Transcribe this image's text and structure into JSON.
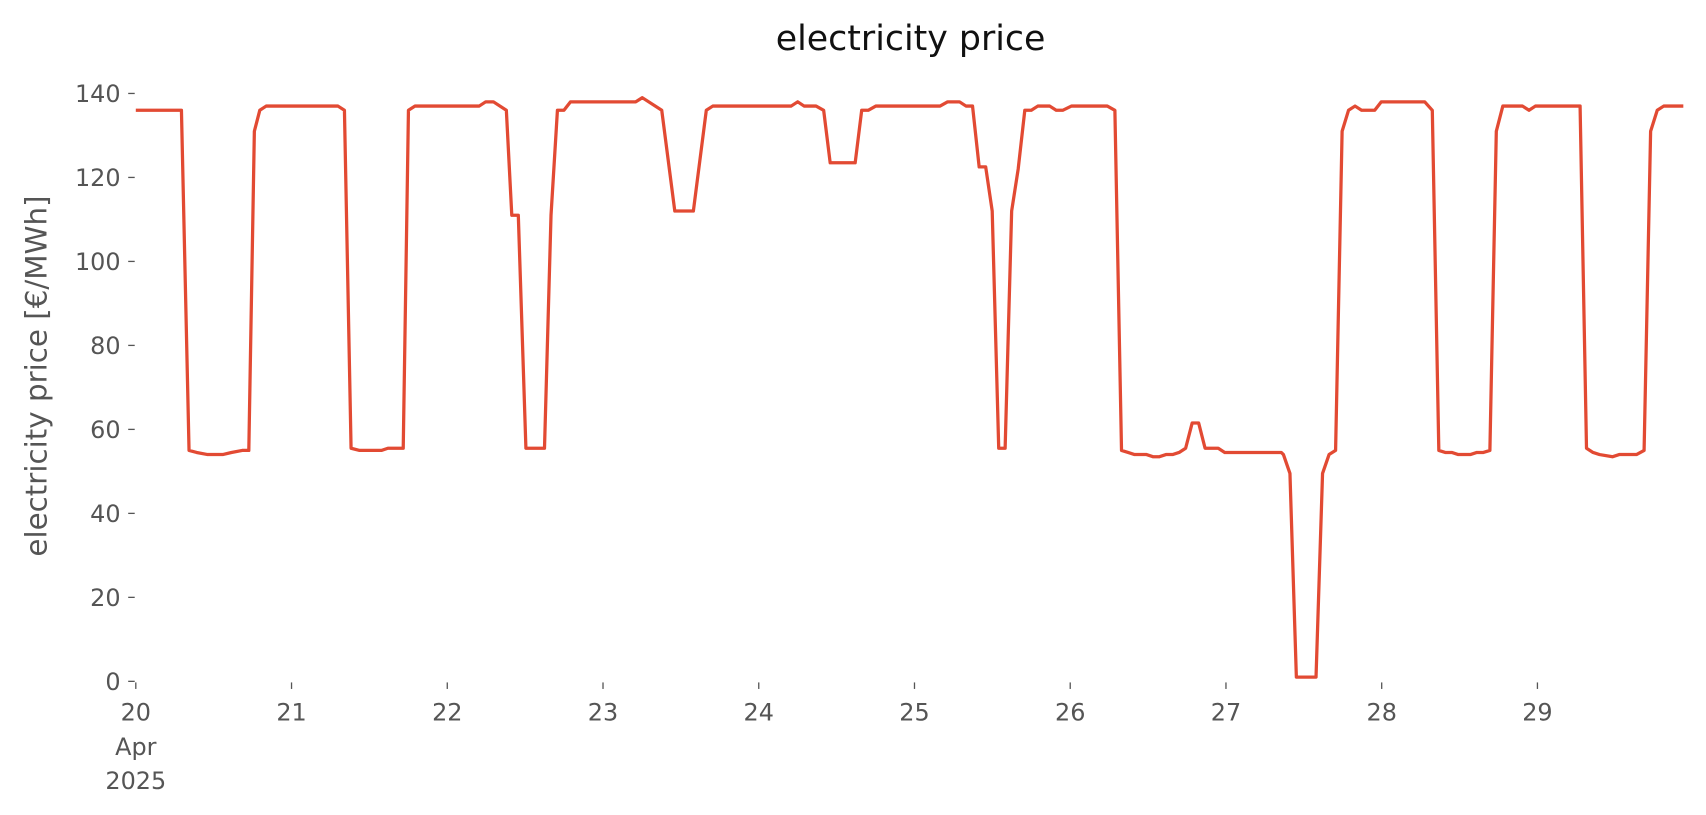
{
  "chart_data": {
    "type": "line",
    "title": "electricity price",
    "ylabel": "electricity price [€/MWh]",
    "x": [
      20.0,
      20.293,
      20.342,
      20.391,
      20.461,
      20.558,
      20.614,
      20.684,
      20.726,
      20.761,
      20.796,
      20.837,
      21.298,
      21.34,
      21.382,
      21.437,
      21.479,
      21.577,
      21.619,
      21.717,
      21.751,
      21.793,
      22.205,
      22.247,
      22.296,
      22.379,
      22.414,
      22.456,
      22.505,
      22.624,
      22.666,
      22.707,
      22.749,
      22.791,
      23.21,
      23.252,
      23.377,
      23.461,
      23.58,
      23.663,
      23.705,
      24.208,
      24.25,
      24.291,
      24.368,
      24.417,
      24.459,
      24.619,
      24.661,
      24.703,
      24.752,
      25.164,
      25.213,
      25.289,
      25.331,
      25.373,
      25.415,
      25.457,
      25.499,
      25.541,
      25.582,
      25.624,
      25.666,
      25.708,
      25.75,
      25.792,
      25.868,
      25.91,
      25.952,
      26.008,
      26.238,
      26.287,
      26.329,
      26.371,
      26.413,
      26.49,
      26.531,
      26.573,
      26.615,
      26.657,
      26.699,
      26.741,
      26.783,
      26.825,
      26.866,
      26.95,
      26.992,
      27.355,
      27.369,
      27.411,
      27.452,
      27.578,
      27.62,
      27.662,
      27.704,
      27.746,
      27.787,
      27.829,
      27.871,
      27.955,
      27.997,
      28.276,
      28.325,
      28.367,
      28.408,
      28.45,
      28.492,
      28.569,
      28.611,
      28.653,
      28.695,
      28.736,
      28.778,
      28.904,
      28.946,
      28.987,
      29.274,
      29.315,
      29.357,
      29.399,
      29.483,
      29.525,
      29.636,
      29.685,
      29.727,
      29.769,
      29.811,
      29.937
    ],
    "series": [
      {
        "name": "electricity price",
        "color": "#e24a33",
        "values": [
          136,
          136,
          55,
          54.5,
          54,
          54,
          54.5,
          55,
          55,
          131,
          136,
          137,
          137,
          136,
          55.5,
          55,
          55,
          55,
          55.5,
          55.5,
          136,
          137,
          137,
          138,
          138,
          136,
          111,
          111,
          55.5,
          55.5,
          111,
          136,
          136,
          138,
          138,
          139,
          136,
          112,
          112,
          136,
          137,
          137,
          138,
          137,
          137,
          136,
          123.5,
          123.5,
          136,
          136,
          137,
          137,
          138,
          138,
          137,
          137,
          122.5,
          122.5,
          112,
          55.5,
          55.5,
          112,
          122,
          136,
          136,
          137,
          137,
          136,
          136,
          137,
          137,
          136,
          55,
          54.5,
          54,
          54,
          53.5,
          53.5,
          54,
          54,
          54.5,
          55.5,
          61.5,
          61.5,
          55.5,
          55.5,
          54.5,
          54.5,
          54,
          49.5,
          1,
          1,
          49.5,
          54,
          55,
          131,
          136,
          137,
          136,
          136,
          138,
          138,
          136,
          55,
          54.5,
          54.5,
          54,
          54,
          54.5,
          54.5,
          55,
          131,
          137,
          137,
          136,
          137,
          137,
          55.5,
          54.5,
          54,
          53.5,
          54,
          54,
          55,
          131,
          136,
          137,
          137
        ]
      }
    ],
    "xlim": [
      20,
      29.95
    ],
    "xticks": [
      20,
      21,
      22,
      23,
      24,
      25,
      26,
      27,
      28,
      29
    ],
    "x_tick_sublabels": [
      "Apr",
      "2025"
    ],
    "ylim": [
      0,
      140
    ],
    "yticks": [
      0,
      20,
      40,
      60,
      80,
      100,
      120,
      140
    ],
    "grid": false
  }
}
